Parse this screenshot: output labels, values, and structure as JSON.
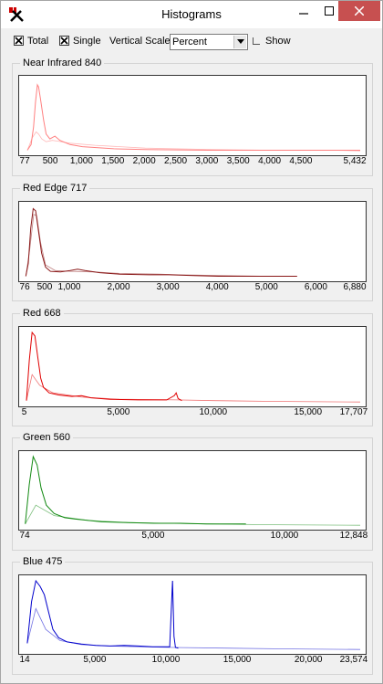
{
  "window": {
    "title": "Histograms"
  },
  "toolbar": {
    "total_label": "Total",
    "total_checked": true,
    "single_label": "Single",
    "single_checked": true,
    "vertical_scale_label": "Vertical Scale",
    "vertical_scale_value": "Percent",
    "show_label": "Show",
    "show_checked": false
  },
  "chart_data": [
    {
      "type": "line",
      "title": "Near Infrared 840",
      "color": "#ff8080",
      "xlim": [
        77,
        5432
      ],
      "tick_labels": [
        "77",
        "500",
        "1,000",
        "1,500",
        "2,000",
        "2,500",
        "3,000",
        "3,500",
        "4,000",
        "4,500",
        "5,432"
      ],
      "tick_values": [
        77,
        500,
        1000,
        1500,
        2000,
        2500,
        3000,
        3500,
        4000,
        4500,
        5432
      ],
      "series": [
        {
          "x": [
            120,
            180,
            220,
            250,
            280,
            300,
            330,
            380,
            420,
            480,
            560,
            640,
            800,
            1000,
            1500,
            2000,
            3000,
            4000,
            5000,
            5432
          ],
          "values": [
            2,
            10,
            35,
            70,
            95,
            92,
            75,
            45,
            25,
            18,
            22,
            16,
            10,
            7,
            4,
            3,
            2,
            2,
            2,
            2
          ]
        },
        {
          "x": [
            120,
            200,
            260,
            300,
            350,
            420,
            520,
            600,
            800,
            1200,
            2000,
            3000,
            4000,
            5000,
            5432
          ],
          "values": [
            2,
            20,
            28,
            25,
            18,
            14,
            16,
            15,
            12,
            9,
            5,
            3,
            2,
            2,
            1
          ]
        }
      ]
    },
    {
      "type": "line",
      "title": "Red Edge 717",
      "color": "#8b1a1a",
      "xlim": [
        76,
        6880
      ],
      "tick_labels": [
        "76",
        "500",
        "1,000",
        "2,000",
        "3,000",
        "4,000",
        "5,000",
        "6,000",
        "6,880"
      ],
      "tick_values": [
        76,
        500,
        1000,
        2000,
        3000,
        4000,
        5000,
        6000,
        6880
      ],
      "series": [
        {
          "x": [
            100,
            150,
            200,
            250,
            300,
            350,
            420,
            500,
            600,
            800,
            1000,
            1150,
            1300,
            1600,
            2000,
            2600,
            3000,
            3500,
            4000,
            5000,
            5600
          ],
          "values": [
            2,
            20,
            70,
            98,
            95,
            70,
            35,
            15,
            9,
            8,
            10,
            12,
            10,
            7,
            5,
            4,
            4,
            3,
            2,
            2,
            2
          ]
        },
        {
          "x": [
            100,
            180,
            260,
            320,
            400,
            500,
            700,
            1000,
            1500,
            2000,
            2800,
            3200,
            4000,
            5000,
            5600
          ],
          "values": [
            2,
            40,
            90,
            88,
            50,
            18,
            10,
            9,
            8,
            6,
            5,
            4,
            3,
            2,
            2
          ]
        }
      ]
    },
    {
      "type": "line",
      "title": "Red 668",
      "color": "#e00000",
      "xlim": [
        5,
        17707
      ],
      "tick_labels": [
        "5",
        "5,000",
        "10,000",
        "15,000",
        "17,707"
      ],
      "tick_values": [
        5,
        5000,
        10000,
        15000,
        17707
      ],
      "series": [
        {
          "x": [
            100,
            250,
            400,
            550,
            700,
            850,
            1000,
            1300,
            1800,
            2500,
            3000,
            3500,
            4500,
            6000,
            7500,
            7900,
            8000,
            8100,
            8300
          ],
          "values": [
            3,
            60,
            100,
            95,
            65,
            35,
            22,
            14,
            11,
            9,
            10,
            7,
            5,
            4,
            4,
            10,
            14,
            6,
            3
          ]
        },
        {
          "x": [
            100,
            400,
            800,
            1500,
            3000,
            5000,
            8000,
            10000,
            13000,
            17707
          ],
          "values": [
            3,
            40,
            25,
            14,
            8,
            5,
            4,
            3,
            2,
            1
          ]
        }
      ]
    },
    {
      "type": "line",
      "title": "Green 560",
      "color": "#138a13",
      "xlim": [
        74,
        12848
      ],
      "tick_labels": [
        "74",
        "5,000",
        "10,000",
        "12,848"
      ],
      "tick_values": [
        74,
        5000,
        10000,
        12848
      ],
      "series": [
        {
          "x": [
            100,
            250,
            400,
            550,
            700,
            900,
            1200,
            1600,
            2000,
            2500,
            3000,
            4000,
            5000,
            6000,
            7000,
            8500
          ],
          "values": [
            3,
            60,
            100,
            88,
            55,
            30,
            18,
            12,
            10,
            8,
            6,
            5,
            4,
            4,
            3,
            3
          ]
        },
        {
          "x": [
            100,
            500,
            1200,
            2500,
            4000,
            5500,
            7000,
            9000,
            12848
          ],
          "values": [
            3,
            30,
            15,
            8,
            5,
            4,
            3,
            2,
            1
          ]
        }
      ]
    },
    {
      "type": "line",
      "title": "Blue 475",
      "color": "#0000cc",
      "xlim": [
        14,
        23574
      ],
      "tick_labels": [
        "14",
        "5,000",
        "10,000",
        "15,000",
        "20,000",
        "23,574"
      ],
      "tick_values": [
        14,
        5000,
        10000,
        15000,
        20000,
        23574
      ],
      "series": [
        {
          "x": [
            200,
            500,
            800,
            1100,
            1400,
            1700,
            2000,
            2400,
            3000,
            4000,
            5000,
            6000,
            7000,
            8000,
            9000,
            10200,
            10400,
            10500,
            10600,
            10800
          ],
          "values": [
            10,
            70,
            100,
            92,
            80,
            55,
            30,
            18,
            12,
            9,
            7,
            6,
            7,
            6,
            5,
            5,
            100,
            20,
            4,
            3
          ]
        },
        {
          "x": [
            200,
            800,
            1500,
            2500,
            4000,
            6000,
            8000,
            10500,
            14000,
            18000,
            23574
          ],
          "values": [
            10,
            60,
            30,
            14,
            8,
            6,
            5,
            4,
            3,
            2,
            1
          ]
        }
      ]
    }
  ]
}
